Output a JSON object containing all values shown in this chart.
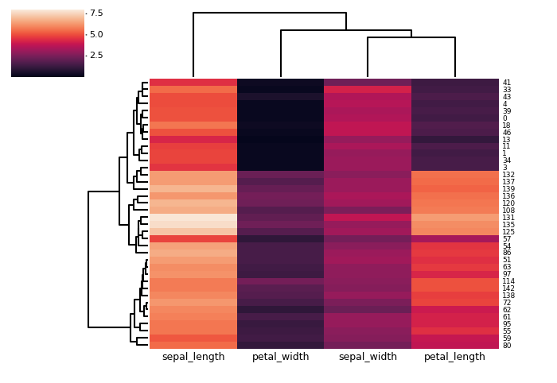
{
  "row_order": [
    41,
    33,
    43,
    4,
    39,
    0,
    18,
    46,
    13,
    11,
    1,
    34,
    3,
    132,
    137,
    139,
    136,
    120,
    108,
    131,
    135,
    125,
    57,
    54,
    86,
    51,
    63,
    97,
    114,
    142,
    138,
    72,
    62,
    61,
    95,
    55,
    59,
    80
  ],
  "col_order": [
    "sepal_length",
    "petal_width",
    "sepal_width",
    "petal_length"
  ],
  "colormap": "rocket",
  "figsize": [
    7.0,
    4.82
  ],
  "dpi": 100,
  "background_color": "#ffffff",
  "colorbar_ticks": [
    2.5,
    5.0,
    7.5
  ],
  "vmin": 0,
  "vmax": 8,
  "xlabel_fontsize": 9,
  "ylabel_fontsize": 6.5
}
